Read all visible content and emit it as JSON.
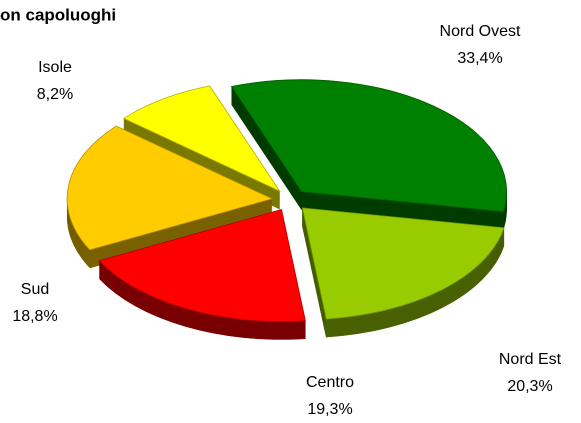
{
  "chart_data": {
    "type": "pie",
    "title": "on capoluoghi",
    "categories": [
      "Nord Ovest",
      "Nord Est",
      "Centro",
      "Sud",
      "Isole"
    ],
    "values": [
      33.4,
      20.3,
      19.3,
      18.8,
      8.2
    ],
    "value_labels": [
      "33,4%",
      "20,3%",
      "19,3%",
      "18,8%",
      "8,2%"
    ],
    "colors": [
      "#008000",
      "#99cc00",
      "#ff0000",
      "#ffcc00",
      "#ffff00"
    ]
  }
}
